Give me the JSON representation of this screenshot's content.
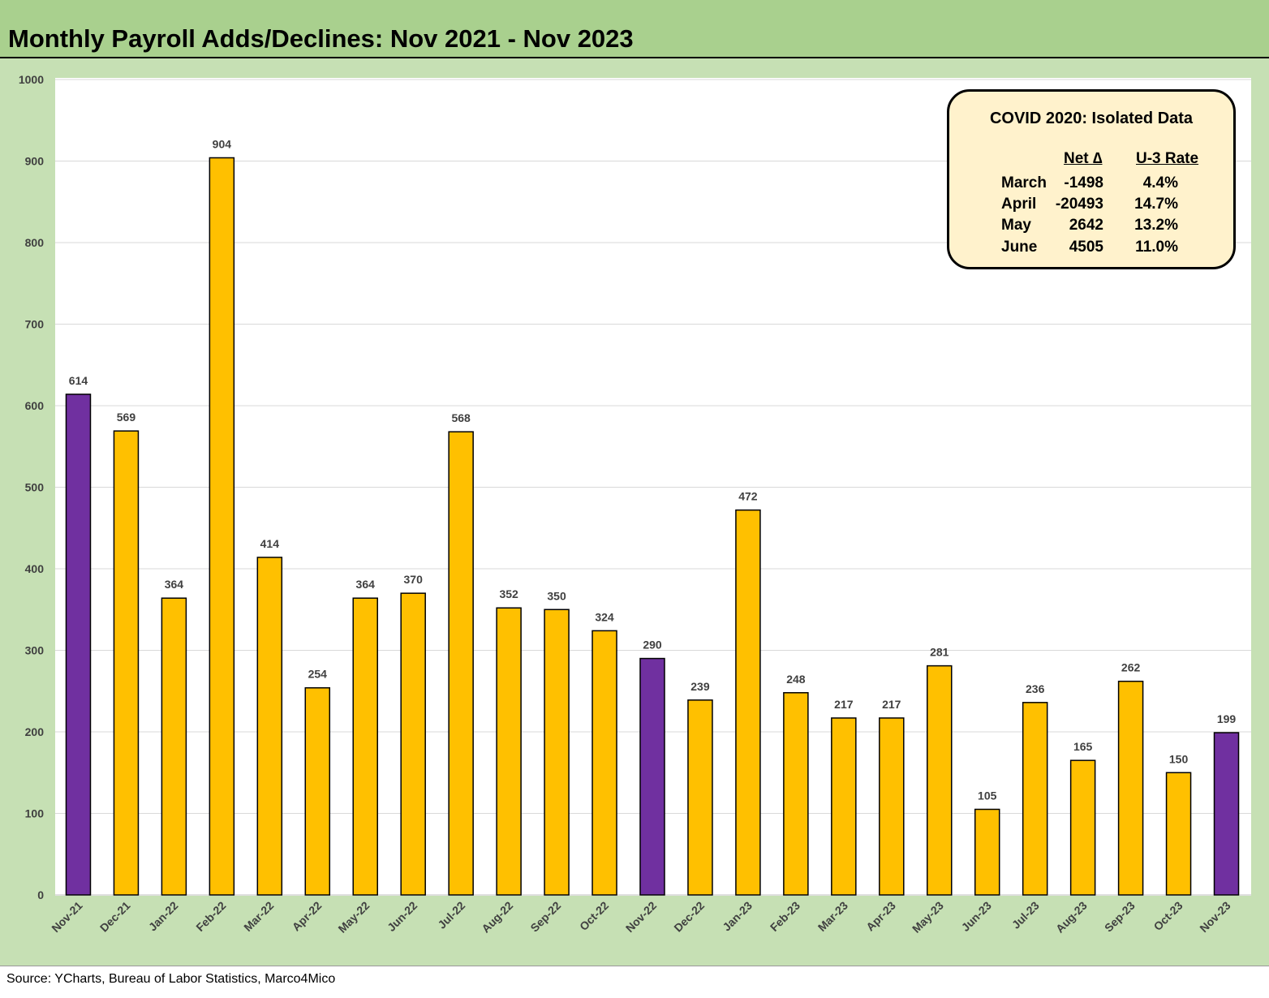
{
  "title": "Monthly Payroll Adds/Declines: Nov 2021 - Nov 2023",
  "source": "Source: YCharts, Bureau of Labor Statistics, Marco4Mico",
  "colors": {
    "bar_default": "#ffc000",
    "bar_highlight": "#7030a0",
    "title_bg": "#a9d08e",
    "frame_bg": "#c6e0b4",
    "box_bg": "#fff2cc"
  },
  "chart_data": {
    "type": "bar",
    "title": "Monthly Payroll Adds/Declines: Nov 2021 - Nov 2023",
    "xlabel": "",
    "ylabel": "",
    "ylim": [
      0,
      1000
    ],
    "yticks": [
      0,
      100,
      200,
      300,
      400,
      500,
      600,
      700,
      800,
      900,
      1000
    ],
    "grid": true,
    "categories": [
      "Nov-21",
      "Dec-21",
      "Jan-22",
      "Feb-22",
      "Mar-22",
      "Apr-22",
      "May-22",
      "Jun-22",
      "Jul-22",
      "Aug-22",
      "Sep-22",
      "Oct-22",
      "Nov-22",
      "Dec-22",
      "Jan-23",
      "Feb-23",
      "Mar-23",
      "Apr-23",
      "May-23",
      "Jun-23",
      "Jul-23",
      "Aug-23",
      "Sep-23",
      "Oct-23",
      "Nov-23"
    ],
    "values": [
      614,
      569,
      364,
      904,
      414,
      254,
      364,
      370,
      568,
      352,
      350,
      324,
      290,
      239,
      472,
      248,
      217,
      217,
      281,
      105,
      236,
      165,
      262,
      150,
      199
    ],
    "highlight": [
      true,
      false,
      false,
      false,
      false,
      false,
      false,
      false,
      false,
      false,
      false,
      false,
      true,
      false,
      false,
      false,
      false,
      false,
      false,
      false,
      false,
      false,
      false,
      false,
      true
    ]
  },
  "covid_box": {
    "title": "COVID 2020: Isolated Data",
    "col_net": "Net ∆",
    "col_rate": "U-3 Rate",
    "rows": [
      {
        "month": "March",
        "net": "-1498",
        "rate": "4.4%"
      },
      {
        "month": "April",
        "net": "-20493",
        "rate": "14.7%"
      },
      {
        "month": "May",
        "net": "2642",
        "rate": "13.2%"
      },
      {
        "month": "June",
        "net": "4505",
        "rate": "11.0%"
      }
    ]
  }
}
